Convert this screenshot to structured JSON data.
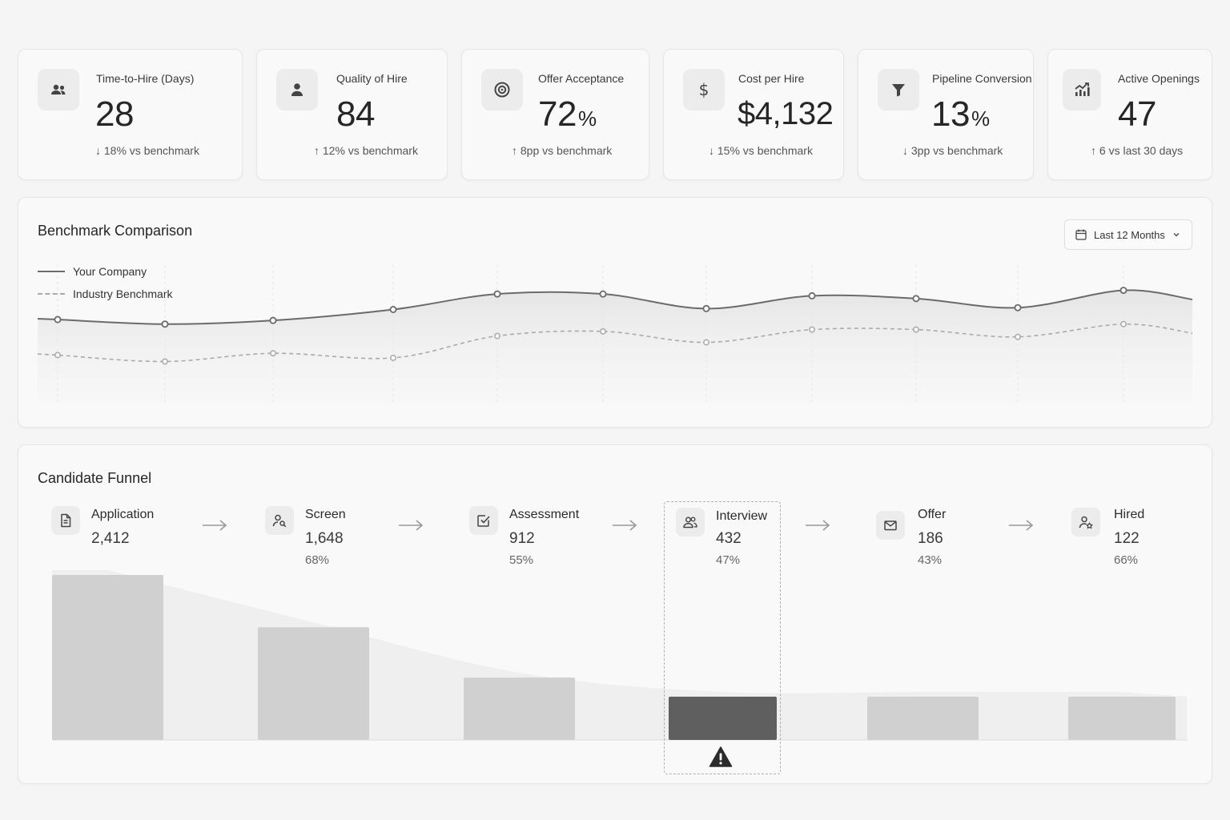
{
  "kpis": [
    {
      "icon": "people-icon",
      "label": "Time-to-Hire (Days)",
      "value": "28",
      "unit": "",
      "delta_arrow": "↓",
      "delta": "18% vs benchmark"
    },
    {
      "icon": "person-icon",
      "label": "Quality of Hire",
      "value": "84",
      "unit": "",
      "delta_arrow": "↑",
      "delta": "12% vs benchmark"
    },
    {
      "icon": "target-icon",
      "label": "Offer Acceptance",
      "value": "72",
      "unit": "%",
      "delta_arrow": "↑",
      "delta": "8pp vs benchmark"
    },
    {
      "icon": "dollar-icon",
      "label": "Cost per Hire",
      "value": "$4,132",
      "unit": "",
      "delta_arrow": "↓",
      "delta": "15% vs benchmark"
    },
    {
      "icon": "filter-icon",
      "label": "Pipeline Conversion",
      "value": "13",
      "unit": "%",
      "delta_arrow": "↓",
      "delta": "3pp vs benchmark"
    },
    {
      "icon": "growth-chart-icon",
      "label": "Active Openings",
      "value": "47",
      "unit": "",
      "delta_arrow": "↑",
      "delta": "6 vs last 30 days"
    }
  ],
  "benchmark": {
    "title": "Benchmark Comparison",
    "range_label": "Last 12 Months",
    "legend": [
      "Your Company",
      "Industry Benchmark"
    ]
  },
  "chart_data": {
    "type": "line",
    "title": "Benchmark Comparison",
    "x": [
      1,
      2,
      3,
      4,
      5,
      6,
      7,
      8,
      9,
      10,
      11
    ],
    "series": [
      {
        "name": "Your Company",
        "values": [
          63,
          58,
          62,
          74,
          91,
          91,
          75,
          89,
          86,
          76,
          95
        ]
      },
      {
        "name": "Industry Benchmark",
        "values": [
          24,
          17,
          26,
          21,
          45,
          50,
          38,
          52,
          52,
          44,
          58
        ]
      }
    ],
    "ylim": [
      -30,
      135
    ],
    "grid": true,
    "legend_position": "top-left",
    "colors": {
      "Your Company": "#6b6b6b",
      "Industry Benchmark": "#aaaaaa"
    }
  },
  "funnel": {
    "title": "Candidate Funnel",
    "highlight_stage": 3,
    "stages": [
      {
        "icon": "document-icon",
        "name": "Application",
        "count": "2,412",
        "pct": "",
        "value": 2412
      },
      {
        "icon": "user-search-icon",
        "name": "Screen",
        "count": "1,648",
        "pct": "68%",
        "value": 1648
      },
      {
        "icon": "checkbox-icon",
        "name": "Assessment",
        "count": "912",
        "pct": "55%",
        "value": 912
      },
      {
        "icon": "users-icon",
        "name": "Interview",
        "count": "432",
        "pct": "47%",
        "value": 432
      },
      {
        "icon": "mail-icon",
        "name": "Offer",
        "count": "186",
        "pct": "43%",
        "value": 186
      },
      {
        "icon": "user-star-icon",
        "name": "Hired",
        "count": "122",
        "pct": "66%",
        "value": 122
      }
    ],
    "colors": {
      "bar": "#d0d0d0",
      "highlight": "#5f5f60"
    }
  }
}
